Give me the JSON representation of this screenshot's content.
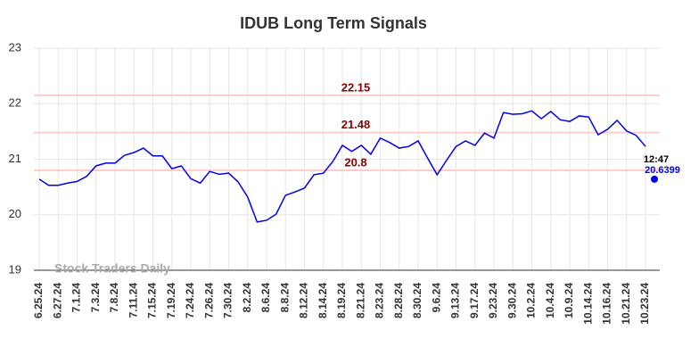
{
  "chart_data": {
    "type": "line",
    "title": "IDUB Long Term Signals",
    "categories": [
      "6.25.24",
      null,
      "6.27.24",
      null,
      "7.1.24",
      null,
      "7.3.24",
      null,
      "7.8.24",
      null,
      "7.11.24",
      null,
      "7.15.24",
      null,
      "7.19.24",
      null,
      "7.24.24",
      null,
      "7.26.24",
      null,
      "7.30.24",
      null,
      "8.2.24",
      null,
      "8.6.24",
      null,
      "8.8.24",
      null,
      "8.12.24",
      null,
      "8.14.24",
      null,
      "8.19.24",
      null,
      "8.21.24",
      null,
      "8.23.24",
      null,
      "8.28.24",
      null,
      "8.30.24",
      null,
      "9.6.24",
      null,
      "9.13.24",
      null,
      "9.17.24",
      null,
      "9.23.24",
      null,
      "9.30.24",
      null,
      "10.2.24",
      null,
      "10.4.24",
      null,
      "10.9.24",
      null,
      "10.14.24",
      null,
      "10.16.24",
      null,
      "10.21.24",
      null,
      "10.23.24"
    ],
    "series": [
      {
        "name": "IDUB",
        "color": "#0000ee",
        "values": [
          20.64,
          20.53,
          20.53,
          20.57,
          20.6,
          20.69,
          20.88,
          20.93,
          20.93,
          21.07,
          21.12,
          21.2,
          21.06,
          21.06,
          20.83,
          20.88,
          20.65,
          20.57,
          20.78,
          20.73,
          20.75,
          20.59,
          20.32,
          19.87,
          19.9,
          20.01,
          20.35,
          20.41,
          20.48,
          20.72,
          20.75,
          20.96,
          21.25,
          21.14,
          21.25,
          21.09,
          21.38,
          21.3,
          21.2,
          21.23,
          21.33,
          21.02,
          20.72,
          20.98,
          21.23,
          21.33,
          21.25,
          21.47,
          21.38,
          21.84,
          21.81,
          21.82,
          21.87,
          21.73,
          21.86,
          21.71,
          21.68,
          21.78,
          21.76,
          21.44,
          21.54,
          21.7,
          21.51,
          21.43,
          21.23
        ]
      }
    ],
    "signal_lines": [
      {
        "value": 22.15,
        "label": "22.15"
      },
      {
        "value": 21.48,
        "label": "21.48"
      },
      {
        "value": 20.8,
        "label": "20.8"
      }
    ],
    "signal_line_color": "#ffcccc",
    "signal_label_color": "#8b0000",
    "last_point": {
      "time": "12:47",
      "value": 20.6399,
      "color": "#0000ee"
    },
    "watermark": "Stock Traders Daily",
    "ylim": [
      19,
      23
    ],
    "yticks": [
      19,
      20,
      21,
      22,
      23
    ],
    "grid": true
  }
}
